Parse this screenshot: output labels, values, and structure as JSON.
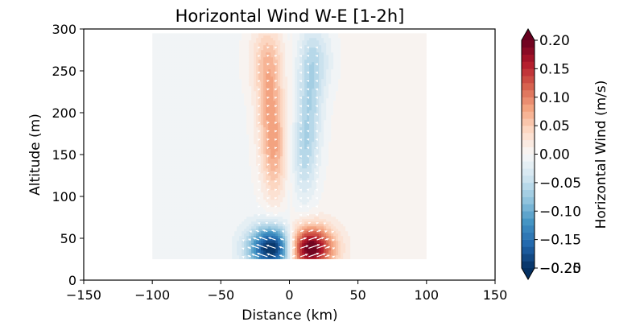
{
  "chart_data": {
    "type": "heatmap",
    "title": "Horizontal Wind W-E [1-2h]",
    "xlabel": "Distance (km)",
    "ylabel": "Altitude (m)",
    "xlim": [
      -150,
      150
    ],
    "ylim": [
      0,
      300
    ],
    "xticks": [
      -150,
      -100,
      -50,
      0,
      50,
      100,
      150
    ],
    "xtick_labels": [
      "−150",
      "−100",
      "−50",
      "0",
      "50",
      "100",
      "150"
    ],
    "yticks": [
      0,
      50,
      100,
      150,
      200,
      250,
      300
    ],
    "ytick_labels": [
      "0",
      "50",
      "100",
      "150",
      "200",
      "250",
      "300"
    ],
    "field_extent": {
      "x": [
        -100,
        100
      ],
      "y": [
        25,
        295
      ]
    },
    "colorbar": {
      "label": "Horizontal Wind (m/s)",
      "colormap": "RdBu_r",
      "range": [
        -0.2,
        0.2
      ],
      "extend": "both",
      "ticks": [
        0.2,
        0.15,
        0.1,
        0.05,
        0.0,
        -0.05,
        -0.1,
        -0.15,
        -0.2
      ],
      "tick_labels": [
        "0.20",
        "0.15",
        "0.10",
        "0.05",
        "0.00",
        "−0.05",
        "−0.10",
        "−0.15",
        "−0.20"
      ],
      "overlap_tick_label": "−0.25"
    },
    "features": [
      {
        "name": "west-lower-jet",
        "x": -12,
        "y": 38,
        "value": -0.22,
        "sx": 12,
        "sy": 18
      },
      {
        "name": "west-upper-plume",
        "x": -14,
        "y": 205,
        "value": 0.07,
        "sx": 7,
        "sy": 55
      },
      {
        "name": "west-upper-plume-2",
        "x": -10,
        "y": 145,
        "value": 0.045,
        "sx": 6,
        "sy": 40
      },
      {
        "name": "west-upper-plume-3",
        "x": -18,
        "y": 265,
        "value": 0.035,
        "sx": 9,
        "sy": 30
      },
      {
        "name": "east-lower-jet",
        "x": 14,
        "y": 38,
        "value": 0.22,
        "sx": 12,
        "sy": 18
      },
      {
        "name": "east-upper-plume",
        "x": 15,
        "y": 210,
        "value": -0.055,
        "sx": 7,
        "sy": 55
      },
      {
        "name": "east-upper-plume-2",
        "x": 10,
        "y": 145,
        "value": -0.04,
        "sx": 6,
        "sy": 40
      },
      {
        "name": "east-upper-plume-3",
        "x": 20,
        "y": 265,
        "value": -0.035,
        "sx": 9,
        "sy": 30
      }
    ],
    "background": {
      "west_value": -0.004,
      "east_value": 0.005
    },
    "wind_vectors": {
      "color": "#ffffff",
      "lower_direction_west": "west",
      "lower_direction_east": "east"
    }
  }
}
